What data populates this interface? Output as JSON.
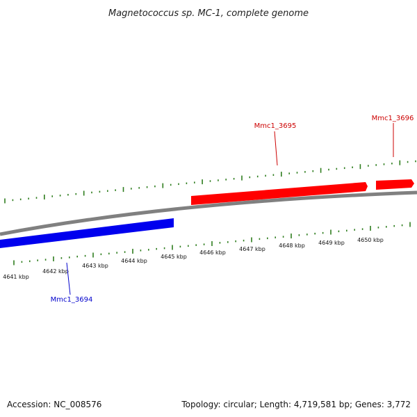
{
  "title": "Magnetococcus sp. MC-1, complete genome",
  "footer": {
    "accession": "Accession: NC_008576",
    "summary": "Topology: circular; Length: 4,719,581 bp; Genes: 3,772"
  },
  "colors": {
    "forward_gene": "#ff0000",
    "reverse_gene": "#0000ee",
    "forward_label": "#cc0000",
    "reverse_label": "#0000cc",
    "backbone": "#808080",
    "tick": "#2e7d1e"
  },
  "scale": {
    "labels": [
      "4641 kbp",
      "4642 kbp",
      "4643 kbp",
      "4644 kbp",
      "4645 kbp",
      "4646 kbp",
      "4647 kbp",
      "4648 kbp",
      "4649 kbp",
      "4650 kbp"
    ]
  },
  "genes": [
    {
      "name": "Mmc1_3694",
      "strand": "reverse"
    },
    {
      "name": "Mmc1_3695",
      "strand": "forward"
    },
    {
      "name": "Mmc1_3696",
      "strand": "forward"
    }
  ]
}
